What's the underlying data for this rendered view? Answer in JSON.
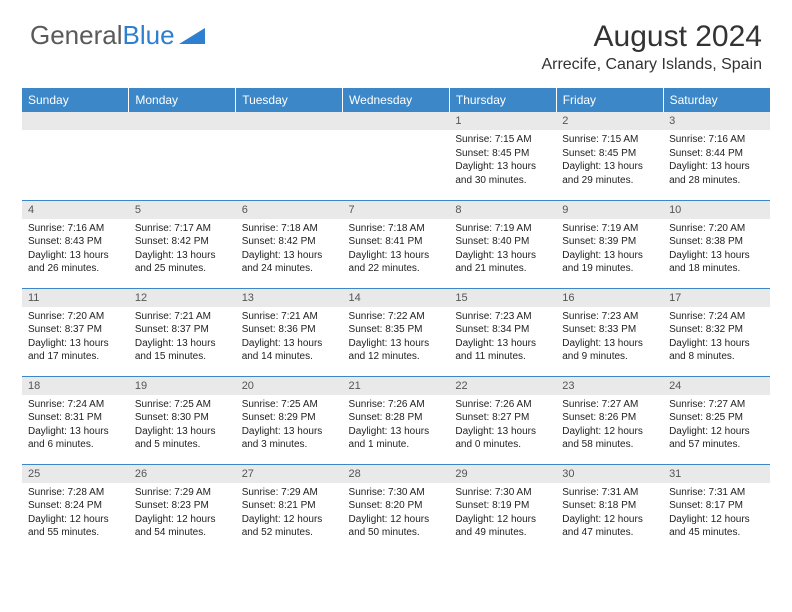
{
  "logo": {
    "part1": "General",
    "part2": "Blue"
  },
  "title": "August 2024",
  "location": "Arrecife, Canary Islands, Spain",
  "colors": {
    "header_bg": "#3b87c8",
    "header_text": "#ffffff",
    "daynum_bg": "#e9e9e9",
    "daynum_text": "#555555",
    "body_text": "#222222",
    "rule": "#3b87c8",
    "logo_gray": "#5a5a5a",
    "logo_blue": "#2f7fd0"
  },
  "weekdays": [
    "Sunday",
    "Monday",
    "Tuesday",
    "Wednesday",
    "Thursday",
    "Friday",
    "Saturday"
  ],
  "weeks": [
    [
      null,
      null,
      null,
      null,
      {
        "n": "1",
        "sr": "Sunrise: 7:15 AM",
        "ss": "Sunset: 8:45 PM",
        "dl1": "Daylight: 13 hours",
        "dl2": "and 30 minutes."
      },
      {
        "n": "2",
        "sr": "Sunrise: 7:15 AM",
        "ss": "Sunset: 8:45 PM",
        "dl1": "Daylight: 13 hours",
        "dl2": "and 29 minutes."
      },
      {
        "n": "3",
        "sr": "Sunrise: 7:16 AM",
        "ss": "Sunset: 8:44 PM",
        "dl1": "Daylight: 13 hours",
        "dl2": "and 28 minutes."
      }
    ],
    [
      {
        "n": "4",
        "sr": "Sunrise: 7:16 AM",
        "ss": "Sunset: 8:43 PM",
        "dl1": "Daylight: 13 hours",
        "dl2": "and 26 minutes."
      },
      {
        "n": "5",
        "sr": "Sunrise: 7:17 AM",
        "ss": "Sunset: 8:42 PM",
        "dl1": "Daylight: 13 hours",
        "dl2": "and 25 minutes."
      },
      {
        "n": "6",
        "sr": "Sunrise: 7:18 AM",
        "ss": "Sunset: 8:42 PM",
        "dl1": "Daylight: 13 hours",
        "dl2": "and 24 minutes."
      },
      {
        "n": "7",
        "sr": "Sunrise: 7:18 AM",
        "ss": "Sunset: 8:41 PM",
        "dl1": "Daylight: 13 hours",
        "dl2": "and 22 minutes."
      },
      {
        "n": "8",
        "sr": "Sunrise: 7:19 AM",
        "ss": "Sunset: 8:40 PM",
        "dl1": "Daylight: 13 hours",
        "dl2": "and 21 minutes."
      },
      {
        "n": "9",
        "sr": "Sunrise: 7:19 AM",
        "ss": "Sunset: 8:39 PM",
        "dl1": "Daylight: 13 hours",
        "dl2": "and 19 minutes."
      },
      {
        "n": "10",
        "sr": "Sunrise: 7:20 AM",
        "ss": "Sunset: 8:38 PM",
        "dl1": "Daylight: 13 hours",
        "dl2": "and 18 minutes."
      }
    ],
    [
      {
        "n": "11",
        "sr": "Sunrise: 7:20 AM",
        "ss": "Sunset: 8:37 PM",
        "dl1": "Daylight: 13 hours",
        "dl2": "and 17 minutes."
      },
      {
        "n": "12",
        "sr": "Sunrise: 7:21 AM",
        "ss": "Sunset: 8:37 PM",
        "dl1": "Daylight: 13 hours",
        "dl2": "and 15 minutes."
      },
      {
        "n": "13",
        "sr": "Sunrise: 7:21 AM",
        "ss": "Sunset: 8:36 PM",
        "dl1": "Daylight: 13 hours",
        "dl2": "and 14 minutes."
      },
      {
        "n": "14",
        "sr": "Sunrise: 7:22 AM",
        "ss": "Sunset: 8:35 PM",
        "dl1": "Daylight: 13 hours",
        "dl2": "and 12 minutes."
      },
      {
        "n": "15",
        "sr": "Sunrise: 7:23 AM",
        "ss": "Sunset: 8:34 PM",
        "dl1": "Daylight: 13 hours",
        "dl2": "and 11 minutes."
      },
      {
        "n": "16",
        "sr": "Sunrise: 7:23 AM",
        "ss": "Sunset: 8:33 PM",
        "dl1": "Daylight: 13 hours",
        "dl2": "and 9 minutes."
      },
      {
        "n": "17",
        "sr": "Sunrise: 7:24 AM",
        "ss": "Sunset: 8:32 PM",
        "dl1": "Daylight: 13 hours",
        "dl2": "and 8 minutes."
      }
    ],
    [
      {
        "n": "18",
        "sr": "Sunrise: 7:24 AM",
        "ss": "Sunset: 8:31 PM",
        "dl1": "Daylight: 13 hours",
        "dl2": "and 6 minutes."
      },
      {
        "n": "19",
        "sr": "Sunrise: 7:25 AM",
        "ss": "Sunset: 8:30 PM",
        "dl1": "Daylight: 13 hours",
        "dl2": "and 5 minutes."
      },
      {
        "n": "20",
        "sr": "Sunrise: 7:25 AM",
        "ss": "Sunset: 8:29 PM",
        "dl1": "Daylight: 13 hours",
        "dl2": "and 3 minutes."
      },
      {
        "n": "21",
        "sr": "Sunrise: 7:26 AM",
        "ss": "Sunset: 8:28 PM",
        "dl1": "Daylight: 13 hours",
        "dl2": "and 1 minute."
      },
      {
        "n": "22",
        "sr": "Sunrise: 7:26 AM",
        "ss": "Sunset: 8:27 PM",
        "dl1": "Daylight: 13 hours",
        "dl2": "and 0 minutes."
      },
      {
        "n": "23",
        "sr": "Sunrise: 7:27 AM",
        "ss": "Sunset: 8:26 PM",
        "dl1": "Daylight: 12 hours",
        "dl2": "and 58 minutes."
      },
      {
        "n": "24",
        "sr": "Sunrise: 7:27 AM",
        "ss": "Sunset: 8:25 PM",
        "dl1": "Daylight: 12 hours",
        "dl2": "and 57 minutes."
      }
    ],
    [
      {
        "n": "25",
        "sr": "Sunrise: 7:28 AM",
        "ss": "Sunset: 8:24 PM",
        "dl1": "Daylight: 12 hours",
        "dl2": "and 55 minutes."
      },
      {
        "n": "26",
        "sr": "Sunrise: 7:29 AM",
        "ss": "Sunset: 8:23 PM",
        "dl1": "Daylight: 12 hours",
        "dl2": "and 54 minutes."
      },
      {
        "n": "27",
        "sr": "Sunrise: 7:29 AM",
        "ss": "Sunset: 8:21 PM",
        "dl1": "Daylight: 12 hours",
        "dl2": "and 52 minutes."
      },
      {
        "n": "28",
        "sr": "Sunrise: 7:30 AM",
        "ss": "Sunset: 8:20 PM",
        "dl1": "Daylight: 12 hours",
        "dl2": "and 50 minutes."
      },
      {
        "n": "29",
        "sr": "Sunrise: 7:30 AM",
        "ss": "Sunset: 8:19 PM",
        "dl1": "Daylight: 12 hours",
        "dl2": "and 49 minutes."
      },
      {
        "n": "30",
        "sr": "Sunrise: 7:31 AM",
        "ss": "Sunset: 8:18 PM",
        "dl1": "Daylight: 12 hours",
        "dl2": "and 47 minutes."
      },
      {
        "n": "31",
        "sr": "Sunrise: 7:31 AM",
        "ss": "Sunset: 8:17 PM",
        "dl1": "Daylight: 12 hours",
        "dl2": "and 45 minutes."
      }
    ]
  ]
}
